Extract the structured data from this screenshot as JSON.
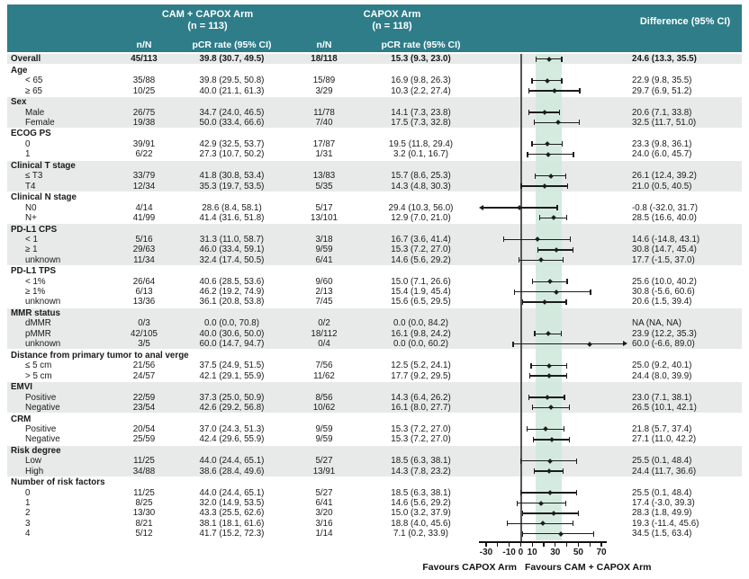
{
  "header": {
    "arm1_title": "CAM + CAPOX Arm",
    "arm1_n": "(n = 113)",
    "arm2_title": "CAPOX Arm",
    "arm2_n": "(n = 118)",
    "diff_title": "Difference (95% CI)",
    "col_nn": "n/N",
    "col_pcr": "pCR rate (95% CI)"
  },
  "axis": {
    "min": -30,
    "max": 70,
    "tick_labels": [
      -30,
      -10,
      0,
      10,
      30,
      50,
      70
    ],
    "minor_ticks": [
      -30,
      -20,
      -10,
      0,
      10,
      20,
      30,
      40,
      50,
      60,
      70
    ],
    "reference_line": 0,
    "band": [
      13.3,
      35.5
    ],
    "favours_left": "Favours CAPOX Arm",
    "favours_right": "Favours CAM + CAPOX Arm"
  },
  "colors": {
    "header_teal": "#2e7d89",
    "row_shade": "#e8e9e9",
    "band_mint": "#d0e9dd",
    "zero_line": "#555555",
    "bar_black": "#1c1c1c"
  },
  "groups": [
    {
      "label": "",
      "shaded": true,
      "rows": [
        {
          "label": "Overall",
          "indent": false,
          "bold": true,
          "nN1": "45/113",
          "pcr1": "39.8 (30.7, 49.5)",
          "nN2": "18/118",
          "pcr2": "15.3 (9.3, 23.0)",
          "diff": "24.6 (13.3, 35.5)",
          "est": 24.6,
          "lo": 13.3,
          "hi": 35.5
        }
      ]
    },
    {
      "label": "Age",
      "shaded": false,
      "rows": [
        {
          "label": "< 65",
          "indent": true,
          "nN1": "35/88",
          "pcr1": "39.8 (29.5, 50.8)",
          "nN2": "15/89",
          "pcr2": "16.9 (9.8, 26.3)",
          "diff": "22.9 (9.8, 35.5)",
          "est": 22.9,
          "lo": 9.8,
          "hi": 35.5
        },
        {
          "label": "≥ 65",
          "indent": true,
          "nN1": "10/25",
          "pcr1": "40.0 (21.1, 61.3)",
          "nN2": "3/29",
          "pcr2": "10.3 (2.2, 27.4)",
          "diff": "29.7 (6.9, 51.2)",
          "est": 29.7,
          "lo": 6.9,
          "hi": 51.2
        }
      ]
    },
    {
      "label": "Sex",
      "shaded": true,
      "rows": [
        {
          "label": "Male",
          "indent": true,
          "nN1": "26/75",
          "pcr1": "34.7 (24.0, 46.5)",
          "nN2": "11/78",
          "pcr2": "14.1 (7.3, 23.8)",
          "diff": "20.6 (7.1, 33.8)",
          "est": 20.6,
          "lo": 7.1,
          "hi": 33.8
        },
        {
          "label": "Female",
          "indent": true,
          "nN1": "19/38",
          "pcr1": "50.0 (33.4, 66.6)",
          "nN2": "7/40",
          "pcr2": "17.5 (7.3, 32.8)",
          "diff": "32.5 (11.7, 51.0)",
          "est": 32.5,
          "lo": 11.7,
          "hi": 51.0
        }
      ]
    },
    {
      "label": "ECOG PS",
      "shaded": false,
      "rows": [
        {
          "label": "0",
          "indent": true,
          "nN1": "39/91",
          "pcr1": "42.9 (32.5, 53.7)",
          "nN2": "17/87",
          "pcr2": "19.5 (11.8, 29.4)",
          "diff": "23.3 (9.8, 36.1)",
          "est": 23.3,
          "lo": 9.8,
          "hi": 36.1
        },
        {
          "label": "1",
          "indent": true,
          "nN1": "6/22",
          "pcr1": "27.3 (10.7, 50.2)",
          "nN2": "1/31",
          "pcr2": "3.2 (0.1, 16.7)",
          "diff": "24.0 (6.0, 45.7)",
          "est": 24.0,
          "lo": 6.0,
          "hi": 45.7
        }
      ]
    },
    {
      "label": "Clinical T stage",
      "shaded": true,
      "rows": [
        {
          "label": "≤ T3",
          "indent": true,
          "nN1": "33/79",
          "pcr1": "41.8 (30.8, 53.4)",
          "nN2": "13/83",
          "pcr2": "15.7 (8.6, 25.3)",
          "diff": "26.1 (12.4, 39.2)",
          "est": 26.1,
          "lo": 12.4,
          "hi": 39.2
        },
        {
          "label": "T4",
          "indent": true,
          "nN1": "12/34",
          "pcr1": "35.3 (19.7, 53.5)",
          "nN2": "5/35",
          "pcr2": "14.3 (4.8, 30.3)",
          "diff": "21.0 (0.5, 40.5)",
          "est": 21.0,
          "lo": 0.5,
          "hi": 40.5
        }
      ]
    },
    {
      "label": "Clinical N stage",
      "shaded": false,
      "rows": [
        {
          "label": "N0",
          "indent": true,
          "nN1": "4/14",
          "pcr1": "28.6 (8.4, 58.1)",
          "nN2": "5/17",
          "pcr2": "29.4 (10.3, 56.0)",
          "diff": "-0.8 (-32.0, 31.7)",
          "est": -0.8,
          "lo": -32.0,
          "hi": 31.7,
          "arrow": "left"
        },
        {
          "label": "N+",
          "indent": true,
          "nN1": "41/99",
          "pcr1": "41.4 (31.6, 51.8)",
          "nN2": "13/101",
          "pcr2": "12.9 (7.0, 21.0)",
          "diff": "28.5 (16.6, 40.0)",
          "est": 28.5,
          "lo": 16.6,
          "hi": 40.0
        }
      ]
    },
    {
      "label": "PD-L1 CPS",
      "shaded": true,
      "rows": [
        {
          "label": "< 1",
          "indent": true,
          "nN1": "5/16",
          "pcr1": "31.3 (11.0, 58.7)",
          "nN2": "3/18",
          "pcr2": "16.7 (3.6, 41.4)",
          "diff": "14.6 (-14.8, 43.1)",
          "est": 14.6,
          "lo": -14.8,
          "hi": 43.1
        },
        {
          "label": "≥ 1",
          "indent": true,
          "nN1": "29/63",
          "pcr1": "46.0 (33.4, 59.1)",
          "nN2": "9/59",
          "pcr2": "15.3 (7.2, 27.0)",
          "diff": "30.8 (14.7, 45.4)",
          "est": 30.8,
          "lo": 14.7,
          "hi": 45.4
        },
        {
          "label": "unknown",
          "indent": true,
          "nN1": "11/34",
          "pcr1": "32.4 (17.4, 50.5)",
          "nN2": "6/41",
          "pcr2": "14.6 (5.6, 29.2)",
          "diff": "17.7 (-1.5, 37.0)",
          "est": 17.7,
          "lo": -1.5,
          "hi": 37.0
        }
      ]
    },
    {
      "label": "PD-L1 TPS",
      "shaded": false,
      "rows": [
        {
          "label": "< 1%",
          "indent": true,
          "nN1": "26/64",
          "pcr1": "40.6 (28.5, 53.6)",
          "nN2": "9/60",
          "pcr2": "15.0 (7.1, 26.6)",
          "diff": "25.6 (10.0, 40.2)",
          "est": 25.6,
          "lo": 10.0,
          "hi": 40.2
        },
        {
          "label": "≥ 1%",
          "indent": true,
          "nN1": "6/13",
          "pcr1": "46.2 (19.2, 74.9)",
          "nN2": "2/13",
          "pcr2": "15.4 (1.9, 45.4)",
          "diff": "30.8 (-5.6, 60.6)",
          "est": 30.8,
          "lo": -5.6,
          "hi": 60.6
        },
        {
          "label": "unknown",
          "indent": true,
          "nN1": "13/36",
          "pcr1": "36.1 (20.8, 53.8)",
          "nN2": "7/45",
          "pcr2": "15.6 (6.5, 29.5)",
          "diff": "20.6 (1.5, 39.4)",
          "est": 20.6,
          "lo": 1.5,
          "hi": 39.4
        }
      ]
    },
    {
      "label": "MMR status",
      "shaded": true,
      "rows": [
        {
          "label": "dMMR",
          "indent": true,
          "nN1": "0/3",
          "pcr1": "0.0 (0.0, 70.8)",
          "nN2": "0/2",
          "pcr2": "0.0 (0.0, 84.2)",
          "diff": "NA (NA, NA)",
          "est": null,
          "lo": null,
          "hi": null
        },
        {
          "label": "pMMR",
          "indent": true,
          "nN1": "42/105",
          "pcr1": "40.0 (30.6, 50.0)",
          "nN2": "18/112",
          "pcr2": "16.1 (9.8, 24.2)",
          "diff": "23.9 (12.2, 35.3)",
          "est": 23.9,
          "lo": 12.2,
          "hi": 35.3
        },
        {
          "label": "unknown",
          "indent": true,
          "nN1": "3/5",
          "pcr1": "60.0 (14.7, 94.7)",
          "nN2": "0/4",
          "pcr2": "0.0 (0.0, 60.2)",
          "diff": "60.0 (-6.6, 89.0)",
          "est": 60.0,
          "lo": -6.6,
          "hi": 89.0,
          "arrow": "right"
        }
      ]
    },
    {
      "label": "Distance from primary tumor to anal verge",
      "shaded": false,
      "rows": [
        {
          "label": "≤ 5 cm",
          "indent": true,
          "nN1": "21/56",
          "pcr1": "37.5 (24.9, 51.5)",
          "nN2": "7/56",
          "pcr2": "12.5 (5.2, 24.1)",
          "diff": "25.0 (9.2, 40.1)",
          "est": 25.0,
          "lo": 9.2,
          "hi": 40.1
        },
        {
          "label": "> 5 cm",
          "indent": true,
          "nN1": "24/57",
          "pcr1": "42.1 (29.1, 55.9)",
          "nN2": "11/62",
          "pcr2": "17.7 (9.2, 29.5)",
          "diff": "24.4 (8.0, 39.9)",
          "est": 24.4,
          "lo": 8.0,
          "hi": 39.9
        }
      ]
    },
    {
      "label": "EMVI",
      "shaded": true,
      "rows": [
        {
          "label": "Positive",
          "indent": true,
          "nN1": "22/59",
          "pcr1": "37.3 (25.0, 50.9)",
          "nN2": "8/56",
          "pcr2": "14.3 (6.4, 26.2)",
          "diff": "23.0 (7.1, 38.1)",
          "est": 23.0,
          "lo": 7.1,
          "hi": 38.1
        },
        {
          "label": "Negative",
          "indent": true,
          "nN1": "23/54",
          "pcr1": "42.6 (29.2, 56.8)",
          "nN2": "10/62",
          "pcr2": "16.1 (8.0, 27.7)",
          "diff": "26.5 (10.1, 42.1)",
          "est": 26.5,
          "lo": 10.1,
          "hi": 42.1
        }
      ]
    },
    {
      "label": "CRM",
      "shaded": false,
      "rows": [
        {
          "label": "Positive",
          "indent": true,
          "nN1": "20/54",
          "pcr1": "37.0 (24.3, 51.3)",
          "nN2": "9/59",
          "pcr2": "15.3 (7.2, 27.0)",
          "diff": "21.8 (5.7, 37.4)",
          "est": 21.8,
          "lo": 5.7,
          "hi": 37.4
        },
        {
          "label": "Negative",
          "indent": true,
          "nN1": "25/59",
          "pcr1": "42.4 (29.6, 55.9)",
          "nN2": "9/59",
          "pcr2": "15.3 (7.2, 27.0)",
          "diff": "27.1 (11.0, 42.2)",
          "est": 27.1,
          "lo": 11.0,
          "hi": 42.2
        }
      ]
    },
    {
      "label": "Risk degree",
      "shaded": true,
      "rows": [
        {
          "label": "Low",
          "indent": true,
          "nN1": "11/25",
          "pcr1": "44.0 (24.4, 65.1)",
          "nN2": "5/27",
          "pcr2": "18.5 (6.3, 38.1)",
          "diff": "25.5 (0.1, 48.4)",
          "est": 25.5,
          "lo": 0.1,
          "hi": 48.4
        },
        {
          "label": "High",
          "indent": true,
          "nN1": "34/88",
          "pcr1": "38.6 (28.4, 49.6)",
          "nN2": "13/91",
          "pcr2": "14.3 (7.8, 23.2)",
          "diff": "24.4 (11.7, 36.6)",
          "est": 24.4,
          "lo": 11.7,
          "hi": 36.6
        }
      ]
    },
    {
      "label": "Number of risk factors",
      "shaded": false,
      "rows": [
        {
          "label": "0",
          "indent": true,
          "nN1": "11/25",
          "pcr1": "44.0 (24.4, 65.1)",
          "nN2": "5/27",
          "pcr2": "18.5 (6.3, 38.1)",
          "diff": "25.5 (0.1, 48.4)",
          "est": 25.5,
          "lo": 0.1,
          "hi": 48.4
        },
        {
          "label": "1",
          "indent": true,
          "nN1": "8/25",
          "pcr1": "32.0 (14.9, 53.5)",
          "nN2": "6/41",
          "pcr2": "14.6 (5.6, 29.2)",
          "diff": "17.4 (-3.0, 39.3)",
          "est": 17.4,
          "lo": -3.0,
          "hi": 39.3
        },
        {
          "label": "2",
          "indent": true,
          "nN1": "13/30",
          "pcr1": "43.3 (25.5, 62.6)",
          "nN2": "3/20",
          "pcr2": "15.0 (3.2, 37.9)",
          "diff": "28.3 (1.8, 49.9)",
          "est": 28.3,
          "lo": 1.8,
          "hi": 49.9
        },
        {
          "label": "3",
          "indent": true,
          "nN1": "8/21",
          "pcr1": "38.1 (18.1, 61.6)",
          "nN2": "3/16",
          "pcr2": "18.8 (4.0, 45.6)",
          "diff": "19.3 (-11.4, 45.6)",
          "est": 19.3,
          "lo": -11.4,
          "hi": 45.6
        },
        {
          "label": "4",
          "indent": true,
          "nN1": "5/12",
          "pcr1": "41.7 (15.2, 72.3)",
          "nN2": "1/14",
          "pcr2": "7.1 (0.2, 33.9)",
          "diff": "34.5 (1.5, 63.4)",
          "est": 34.5,
          "lo": 1.5,
          "hi": 63.4
        }
      ]
    }
  ],
  "chart_data": {
    "type": "scatter",
    "subtype": "forest_plot",
    "title": "Subgroup analysis of pCR rate: CAM + CAPOX Arm (n = 113) vs CAPOX Arm (n = 118), difference (95% CI)",
    "xlim": [
      -30,
      70
    ],
    "x_ticks": [
      -30,
      -10,
      0,
      10,
      30,
      50,
      70
    ],
    "reference_line": 0,
    "shaded_band": [
      13.3,
      35.5
    ],
    "legend_left": "Favours CAPOX Arm",
    "legend_right": "Favours CAM + CAPOX Arm",
    "points": [
      {
        "group": "Overall",
        "label": "Overall",
        "est": 24.6,
        "lo": 13.3,
        "hi": 35.5
      },
      {
        "group": "Age",
        "label": "< 65",
        "est": 22.9,
        "lo": 9.8,
        "hi": 35.5
      },
      {
        "group": "Age",
        "label": "≥ 65",
        "est": 29.7,
        "lo": 6.9,
        "hi": 51.2
      },
      {
        "group": "Sex",
        "label": "Male",
        "est": 20.6,
        "lo": 7.1,
        "hi": 33.8
      },
      {
        "group": "Sex",
        "label": "Female",
        "est": 32.5,
        "lo": 11.7,
        "hi": 51.0
      },
      {
        "group": "ECOG PS",
        "label": "0",
        "est": 23.3,
        "lo": 9.8,
        "hi": 36.1
      },
      {
        "group": "ECOG PS",
        "label": "1",
        "est": 24.0,
        "lo": 6.0,
        "hi": 45.7
      },
      {
        "group": "Clinical T stage",
        "label": "≤ T3",
        "est": 26.1,
        "lo": 12.4,
        "hi": 39.2
      },
      {
        "group": "Clinical T stage",
        "label": "T4",
        "est": 21.0,
        "lo": 0.5,
        "hi": 40.5
      },
      {
        "group": "Clinical N stage",
        "label": "N0",
        "est": -0.8,
        "lo": -32.0,
        "hi": 31.7
      },
      {
        "group": "Clinical N stage",
        "label": "N+",
        "est": 28.5,
        "lo": 16.6,
        "hi": 40.0
      },
      {
        "group": "PD-L1 CPS",
        "label": "< 1",
        "est": 14.6,
        "lo": -14.8,
        "hi": 43.1
      },
      {
        "group": "PD-L1 CPS",
        "label": "≥ 1",
        "est": 30.8,
        "lo": 14.7,
        "hi": 45.4
      },
      {
        "group": "PD-L1 CPS",
        "label": "unknown",
        "est": 17.7,
        "lo": -1.5,
        "hi": 37.0
      },
      {
        "group": "PD-L1 TPS",
        "label": "< 1%",
        "est": 25.6,
        "lo": 10.0,
        "hi": 40.2
      },
      {
        "group": "PD-L1 TPS",
        "label": "≥ 1%",
        "est": 30.8,
        "lo": -5.6,
        "hi": 60.6
      },
      {
        "group": "PD-L1 TPS",
        "label": "unknown",
        "est": 20.6,
        "lo": 1.5,
        "hi": 39.4
      },
      {
        "group": "MMR status",
        "label": "dMMR",
        "est": null,
        "lo": null,
        "hi": null
      },
      {
        "group": "MMR status",
        "label": "pMMR",
        "est": 23.9,
        "lo": 12.2,
        "hi": 35.3
      },
      {
        "group": "MMR status",
        "label": "unknown",
        "est": 60.0,
        "lo": -6.6,
        "hi": 89.0
      },
      {
        "group": "Distance from primary tumor to anal verge",
        "label": "≤ 5 cm",
        "est": 25.0,
        "lo": 9.2,
        "hi": 40.1
      },
      {
        "group": "Distance from primary tumor to anal verge",
        "label": "> 5 cm",
        "est": 24.4,
        "lo": 8.0,
        "hi": 39.9
      },
      {
        "group": "EMVI",
        "label": "Positive",
        "est": 23.0,
        "lo": 7.1,
        "hi": 38.1
      },
      {
        "group": "EMVI",
        "label": "Negative",
        "est": 26.5,
        "lo": 10.1,
        "hi": 42.1
      },
      {
        "group": "CRM",
        "label": "Positive",
        "est": 21.8,
        "lo": 5.7,
        "hi": 37.4
      },
      {
        "group": "CRM",
        "label": "Negative",
        "est": 27.1,
        "lo": 11.0,
        "hi": 42.2
      },
      {
        "group": "Risk degree",
        "label": "Low",
        "est": 25.5,
        "lo": 0.1,
        "hi": 48.4
      },
      {
        "group": "Risk degree",
        "label": "High",
        "est": 24.4,
        "lo": 11.7,
        "hi": 36.6
      },
      {
        "group": "Number of risk factors",
        "label": "0",
        "est": 25.5,
        "lo": 0.1,
        "hi": 48.4
      },
      {
        "group": "Number of risk factors",
        "label": "1",
        "est": 17.4,
        "lo": -3.0,
        "hi": 39.3
      },
      {
        "group": "Number of risk factors",
        "label": "2",
        "est": 28.3,
        "lo": 1.8,
        "hi": 49.9
      },
      {
        "group": "Number of risk factors",
        "label": "3",
        "est": 19.3,
        "lo": -11.4,
        "hi": 45.6
      },
      {
        "group": "Number of risk factors",
        "label": "4",
        "est": 34.5,
        "lo": 1.5,
        "hi": 63.4
      }
    ]
  }
}
